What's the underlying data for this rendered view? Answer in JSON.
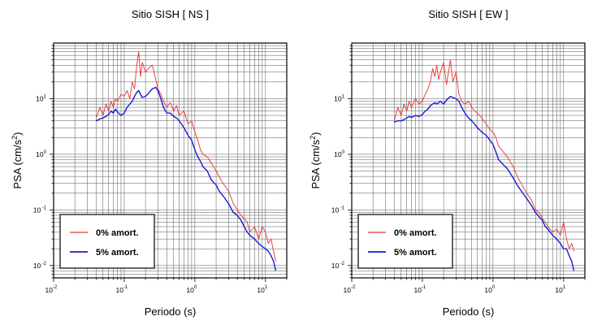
{
  "chart_data": [
    {
      "type": "line",
      "title": "Sitio SISH [ NS ]",
      "xlabel": "Periodo (s)",
      "ylabel": "PSA (cm/s2)",
      "ylabel_parts": {
        "main": "PSA (cm/s",
        "sup": "2",
        "end": ")"
      },
      "x_scale": "log",
      "y_scale": "log",
      "xlim": [
        0.01,
        20
      ],
      "ylim": [
        0.006,
        100
      ],
      "grid": true,
      "legend_position": "bottom-left",
      "x_ticks": [
        {
          "base": "10",
          "exp": "-2",
          "value": 0.01
        },
        {
          "base": "10",
          "exp": "-1",
          "value": 0.1
        },
        {
          "base": "10",
          "exp": "0",
          "value": 1
        },
        {
          "base": "10",
          "exp": "1",
          "value": 10
        }
      ],
      "y_ticks": [
        {
          "base": "10",
          "exp": "-2",
          "value": 0.01
        },
        {
          "base": "10",
          "exp": "-1",
          "value": 0.1
        },
        {
          "base": "10",
          "exp": "0",
          "value": 1
        },
        {
          "base": "10",
          "exp": "1",
          "value": 10
        }
      ],
      "series": [
        {
          "name": "0% amort.",
          "color": "#e8342f",
          "x": [
            0.04,
            0.045,
            0.05,
            0.055,
            0.06,
            0.065,
            0.07,
            0.075,
            0.08,
            0.09,
            0.1,
            0.11,
            0.12,
            0.13,
            0.14,
            0.15,
            0.16,
            0.17,
            0.18,
            0.2,
            0.22,
            0.25,
            0.28,
            0.3,
            0.33,
            0.36,
            0.4,
            0.45,
            0.5,
            0.55,
            0.6,
            0.7,
            0.8,
            0.9,
            1.0,
            1.1,
            1.2,
            1.3,
            1.5,
            1.7,
            2.0,
            2.2,
            2.5,
            3.0,
            3.5,
            4.0,
            4.5,
            5.0,
            5.5,
            6.0,
            7.0,
            8.0,
            9.0,
            10.0,
            11.0,
            12.0,
            13.0,
            14.0
          ],
          "y": [
            4.5,
            7.0,
            5.0,
            8.0,
            6.0,
            9.0,
            7.0,
            10.0,
            9.0,
            12.0,
            11.0,
            14.0,
            10.0,
            20.0,
            15.0,
            40.0,
            70.0,
            25.0,
            45.0,
            30.0,
            35.0,
            40.0,
            22.0,
            15.0,
            12.0,
            9.0,
            7.0,
            8.5,
            6.0,
            7.5,
            5.0,
            6.0,
            3.5,
            4.0,
            2.5,
            1.8,
            1.2,
            1.0,
            0.9,
            0.7,
            0.5,
            0.4,
            0.3,
            0.22,
            0.13,
            0.1,
            0.08,
            0.07,
            0.06,
            0.04,
            0.05,
            0.03,
            0.05,
            0.04,
            0.025,
            0.03,
            0.018,
            0.012
          ]
        },
        {
          "name": "5% amort.",
          "color": "#1a1ad4",
          "x": [
            0.04,
            0.045,
            0.05,
            0.055,
            0.06,
            0.065,
            0.07,
            0.075,
            0.08,
            0.09,
            0.1,
            0.11,
            0.12,
            0.13,
            0.14,
            0.15,
            0.16,
            0.17,
            0.18,
            0.2,
            0.22,
            0.25,
            0.28,
            0.3,
            0.33,
            0.36,
            0.4,
            0.45,
            0.5,
            0.55,
            0.6,
            0.7,
            0.8,
            0.9,
            1.0,
            1.1,
            1.2,
            1.3,
            1.5,
            1.7,
            2.0,
            2.2,
            2.5,
            3.0,
            3.5,
            4.0,
            4.5,
            5.0,
            5.5,
            6.0,
            7.0,
            8.0,
            9.0,
            10.0,
            11.0,
            12.0,
            13.0,
            14.0
          ],
          "y": [
            4.0,
            4.3,
            4.5,
            4.8,
            5.2,
            6.0,
            5.5,
            6.5,
            5.8,
            5.0,
            5.5,
            7.0,
            8.0,
            9.0,
            11.0,
            13.0,
            14.0,
            12.0,
            10.5,
            11.0,
            12.5,
            15.0,
            16.0,
            14.0,
            10.0,
            7.0,
            5.5,
            5.5,
            4.8,
            4.5,
            4.0,
            3.0,
            2.2,
            1.8,
            1.2,
            0.9,
            0.75,
            0.6,
            0.5,
            0.35,
            0.28,
            0.22,
            0.18,
            0.13,
            0.09,
            0.08,
            0.065,
            0.05,
            0.04,
            0.035,
            0.03,
            0.025,
            0.022,
            0.02,
            0.018,
            0.015,
            0.012,
            0.008
          ]
        }
      ]
    },
    {
      "type": "line",
      "title": "Sitio SISH [ EW ]",
      "xlabel": "Periodo (s)",
      "ylabel": "PSA (cm/s2)",
      "ylabel_parts": {
        "main": "PSA (cm/s",
        "sup": "2",
        "end": ")"
      },
      "x_scale": "log",
      "y_scale": "log",
      "xlim": [
        0.01,
        20
      ],
      "ylim": [
        0.006,
        100
      ],
      "grid": true,
      "legend_position": "bottom-left",
      "x_ticks": [
        {
          "base": "10",
          "exp": "-2",
          "value": 0.01
        },
        {
          "base": "10",
          "exp": "-1",
          "value": 0.1
        },
        {
          "base": "10",
          "exp": "0",
          "value": 1
        },
        {
          "base": "10",
          "exp": "1",
          "value": 10
        }
      ],
      "y_ticks": [
        {
          "base": "10",
          "exp": "-2",
          "value": 0.01
        },
        {
          "base": "10",
          "exp": "-1",
          "value": 0.1
        },
        {
          "base": "10",
          "exp": "0",
          "value": 1
        },
        {
          "base": "10",
          "exp": "1",
          "value": 10
        }
      ],
      "series": [
        {
          "name": "0% amort.",
          "color": "#e8342f",
          "x": [
            0.04,
            0.045,
            0.05,
            0.055,
            0.06,
            0.065,
            0.07,
            0.08,
            0.09,
            0.1,
            0.11,
            0.12,
            0.13,
            0.14,
            0.15,
            0.16,
            0.17,
            0.18,
            0.2,
            0.22,
            0.25,
            0.27,
            0.3,
            0.33,
            0.36,
            0.4,
            0.45,
            0.5,
            0.55,
            0.6,
            0.7,
            0.8,
            0.9,
            1.0,
            1.1,
            1.2,
            1.4,
            1.6,
            2.0,
            2.2,
            2.5,
            3.0,
            3.5,
            4.0,
            4.5,
            5.0,
            5.5,
            6.0,
            7.0,
            8.0,
            9.0,
            10.0,
            11.0,
            12.0,
            13.0,
            14.0
          ],
          "y": [
            4.0,
            7.0,
            5.0,
            8.0,
            6.0,
            9.0,
            7.0,
            10.0,
            8.0,
            9.0,
            12.0,
            15.0,
            20.0,
            35.0,
            25.0,
            40.0,
            22.0,
            30.0,
            45.0,
            18.0,
            50.0,
            20.0,
            30.0,
            12.0,
            9.0,
            8.0,
            9.0,
            7.0,
            6.0,
            5.5,
            4.5,
            3.5,
            2.8,
            2.5,
            2.0,
            1.4,
            1.1,
            0.9,
            0.55,
            0.4,
            0.3,
            0.2,
            0.15,
            0.1,
            0.09,
            0.07,
            0.06,
            0.05,
            0.04,
            0.045,
            0.035,
            0.06,
            0.03,
            0.02,
            0.025,
            0.018
          ]
        },
        {
          "name": "5% amort.",
          "color": "#1a1ad4",
          "x": [
            0.04,
            0.045,
            0.05,
            0.055,
            0.06,
            0.065,
            0.07,
            0.08,
            0.09,
            0.1,
            0.11,
            0.12,
            0.13,
            0.14,
            0.15,
            0.16,
            0.17,
            0.18,
            0.2,
            0.22,
            0.25,
            0.27,
            0.3,
            0.33,
            0.36,
            0.4,
            0.45,
            0.5,
            0.55,
            0.6,
            0.7,
            0.8,
            0.9,
            1.0,
            1.1,
            1.2,
            1.4,
            1.6,
            2.0,
            2.2,
            2.5,
            3.0,
            3.5,
            4.0,
            4.5,
            5.0,
            5.5,
            6.0,
            7.0,
            8.0,
            9.0,
            10.0,
            11.0,
            12.0,
            13.0,
            14.0
          ],
          "y": [
            3.8,
            4.0,
            4.0,
            4.2,
            4.5,
            4.8,
            4.6,
            5.0,
            4.8,
            5.2,
            6.0,
            6.5,
            7.5,
            8.0,
            8.5,
            8.0,
            8.5,
            9.0,
            8.0,
            9.5,
            11.0,
            10.5,
            10.0,
            9.0,
            7.0,
            5.5,
            4.5,
            4.0,
            3.5,
            3.0,
            2.5,
            2.2,
            1.8,
            1.5,
            1.1,
            0.8,
            0.65,
            0.55,
            0.35,
            0.28,
            0.22,
            0.16,
            0.12,
            0.09,
            0.075,
            0.065,
            0.05,
            0.045,
            0.035,
            0.03,
            0.025,
            0.02,
            0.02,
            0.015,
            0.012,
            0.008
          ]
        }
      ]
    }
  ]
}
